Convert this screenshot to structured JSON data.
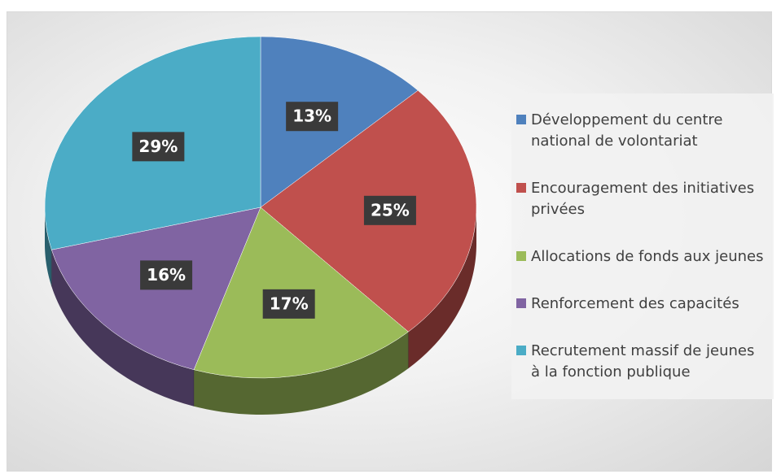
{
  "chart_data": {
    "type": "pie3d",
    "categories": [
      "Développement du centre national de volontariat",
      "Encouragement des initiatives privées",
      "Allocations de fonds aux jeunes",
      "Renforcement des capacités",
      "Recrutement massif de jeunes à la fonction publique"
    ],
    "values": [
      13,
      25,
      17,
      16,
      29
    ],
    "value_labels": [
      "13%",
      "25%",
      "17%",
      "16%",
      "29%"
    ],
    "colors": [
      "#4f81bd",
      "#c0504d",
      "#9bbb59",
      "#8064a2",
      "#4bacc6"
    ],
    "legend": "right"
  }
}
